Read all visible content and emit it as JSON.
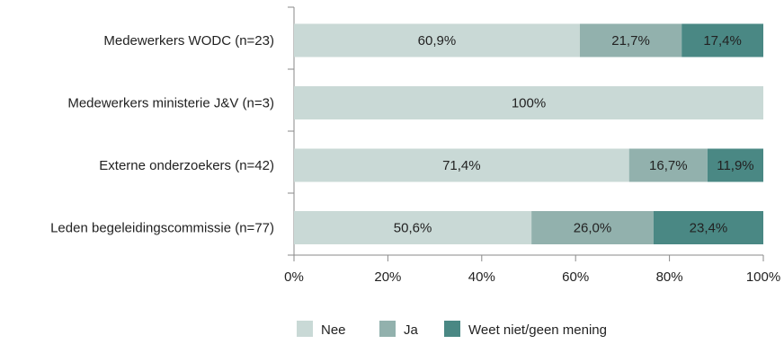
{
  "chart_data": {
    "type": "bar",
    "orientation": "horizontal",
    "stacked": true,
    "title": "",
    "xlabel": "",
    "ylabel": "",
    "categories": [
      "Medewerkers WODC (n=23)",
      "Medewerkers ministerie J&V (n=3)",
      "Externe onderzoekers (n=42)",
      "Leden begeleidingscommissie (n=77)"
    ],
    "series": [
      {
        "name": "Nee",
        "color": "#c9d9d6",
        "values": [
          60.9,
          100,
          71.4,
          50.6
        ],
        "labels": [
          "60,9%",
          "100%",
          "71,4%",
          "50,6%"
        ]
      },
      {
        "name": "Ja",
        "color": "#92b1ad",
        "values": [
          21.7,
          0,
          16.7,
          26.0
        ],
        "labels": [
          "21,7%",
          "",
          "16,7%",
          "26,0%"
        ]
      },
      {
        "name": "Weet niet/geen mening",
        "color": "#4a8884",
        "values": [
          17.4,
          0,
          11.9,
          23.4
        ],
        "labels": [
          "17,4%",
          "",
          "11,9%",
          "23,4%"
        ]
      }
    ],
    "xlim": [
      0,
      100
    ],
    "x_ticks": [
      0,
      20,
      40,
      60,
      80,
      100
    ],
    "x_tick_labels": [
      "0%",
      "20%",
      "40%",
      "60%",
      "80%",
      "100%"
    ],
    "grid": false,
    "legend_position": "bottom-center"
  }
}
